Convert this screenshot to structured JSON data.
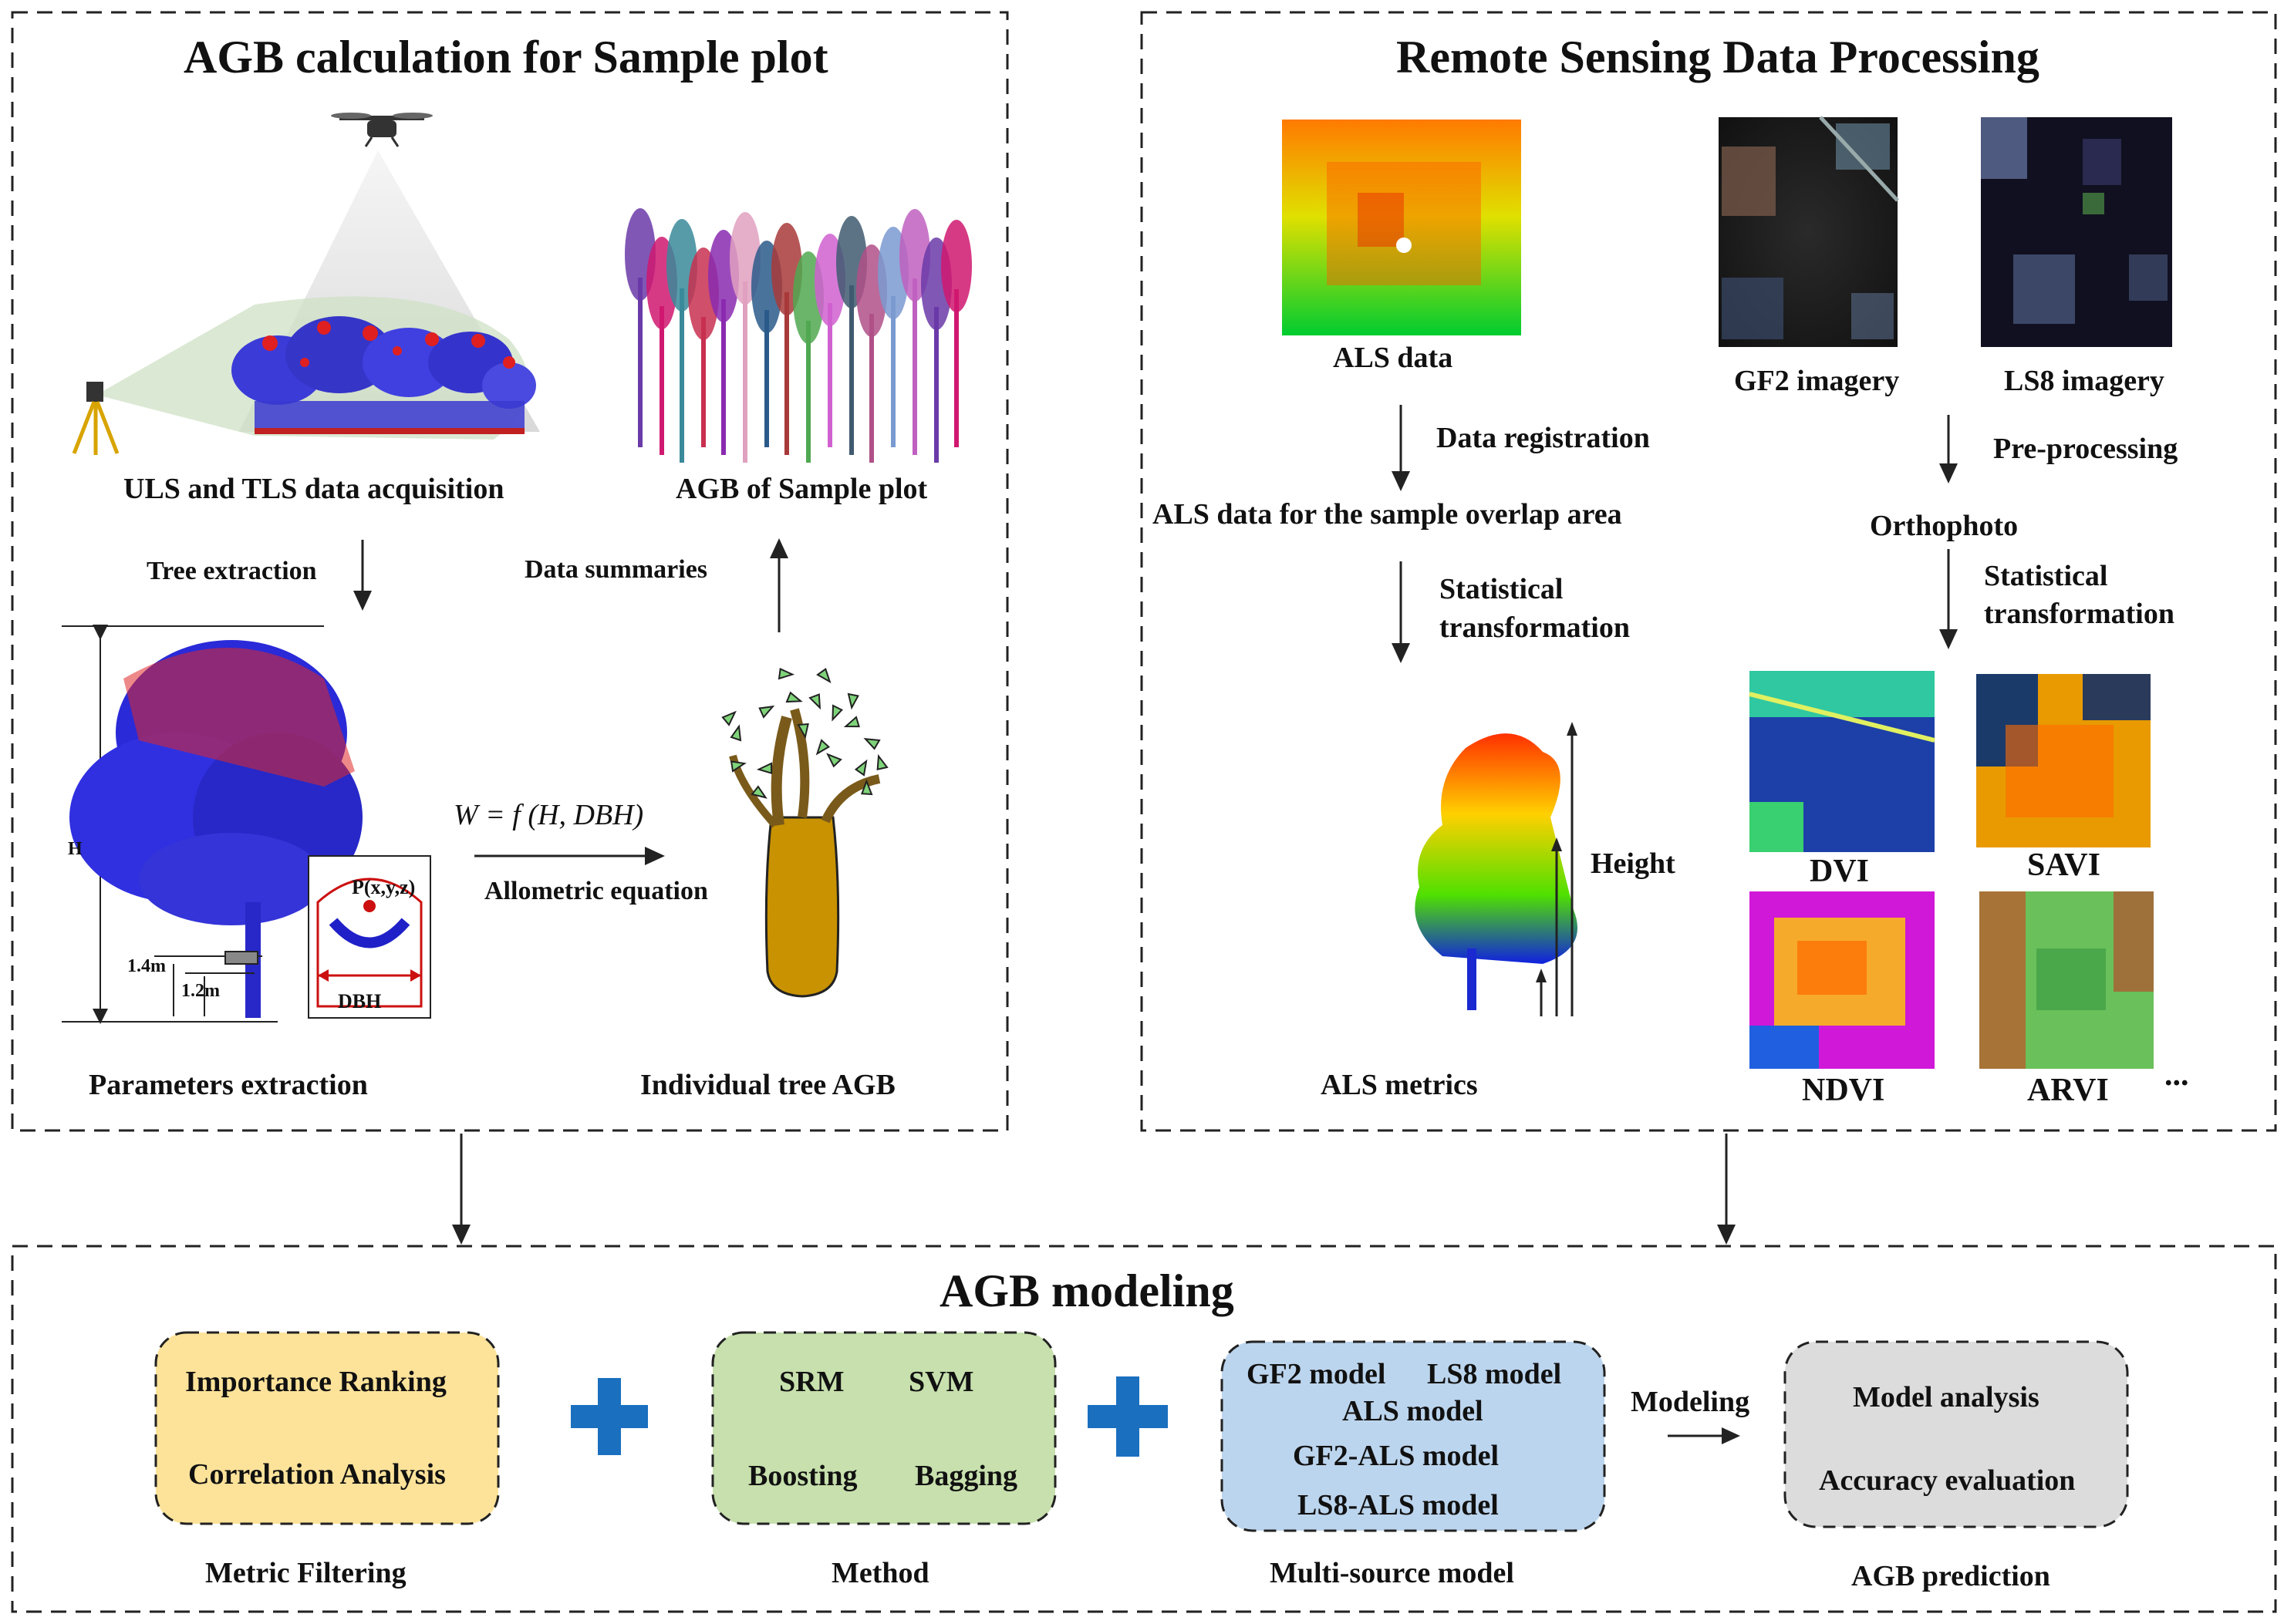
{
  "panels": {
    "sample": {
      "title": "AGB calculation for Sample plot",
      "uls_tls": "ULS and TLS data acquisition",
      "tree_extraction": "Tree extraction",
      "agb_plot": "AGB of Sample plot",
      "data_summaries": "Data summaries",
      "equation": "W = f (H, DBH)",
      "allometric": "Allometric equation",
      "params": "Parameters extraction",
      "individual": "Individual tree AGB",
      "h_label": "H",
      "m14": "1.4m",
      "m12": "1.2m",
      "dbh": "DBH",
      "pxyz": "P(x,y,z)"
    },
    "rs": {
      "title": "Remote Sensing Data Processing",
      "als_data": "ALS data",
      "gf2": "GF2  imagery",
      "ls8": "LS8 imagery",
      "data_registration": "Data registration",
      "preprocessing": "Pre-processing",
      "als_overlap": "ALS data for the sample overlap area",
      "orthophoto": "Orthophoto",
      "stat_left_1": "Statistical",
      "stat_left_2": "transformation",
      "stat_right_1": "Statistical",
      "stat_right_2": "transformation",
      "height": "Height",
      "als_metrics": "ALS metrics",
      "dvi": "DVI",
      "savi": "SAVI",
      "ndvi": "NDVI",
      "arvi": "ARVI",
      "ellipsis": "..."
    },
    "modeling": {
      "title": "AGB modeling",
      "box1": {
        "line1": "Importance Ranking",
        "line2": "Correlation Analysis",
        "caption": "Metric Filtering"
      },
      "box2": {
        "a": "SRM",
        "b": "SVM",
        "c": "Boosting",
        "d": "Bagging",
        "caption": "Method"
      },
      "box3": {
        "a": "GF2 model",
        "b": "LS8 model",
        "c": "ALS model",
        "d": "GF2-ALS model",
        "e": "LS8-ALS model",
        "caption": "Multi-source model"
      },
      "modeling_label": "Modeling",
      "box4": {
        "line1": "Model analysis",
        "line2": "Accuracy evaluation",
        "caption": "AGB prediction"
      }
    }
  },
  "colors": {
    "box1_fill": "#fde39a",
    "box2_fill": "#c7e0ad",
    "box3_fill": "#bcd5ee",
    "box4_fill": "#dcdcdc",
    "plus": "#1a6fbf"
  }
}
